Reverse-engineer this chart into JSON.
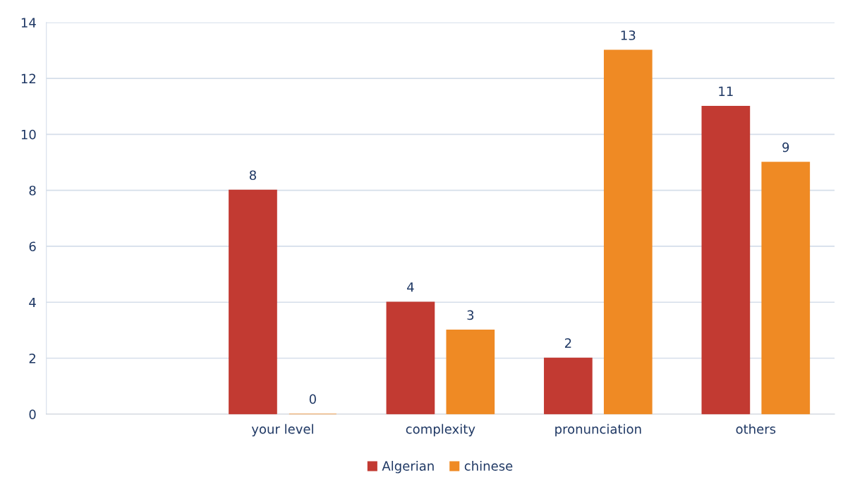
{
  "chart_data": {
    "type": "bar",
    "categories": [
      null,
      "your level",
      "complexity",
      "pronunciation",
      "others"
    ],
    "series": [
      {
        "name": "Algerian",
        "color": "#c23a32",
        "values": [
          null,
          8,
          4,
          2,
          11
        ]
      },
      {
        "name": "chinese",
        "color": "#ef8a24",
        "values": [
          null,
          0,
          3,
          13,
          9
        ]
      }
    ],
    "ylim": [
      0,
      14
    ],
    "yticks": [
      0,
      2,
      4,
      6,
      8,
      10,
      12,
      14
    ],
    "grid": "y",
    "legend": "bottom",
    "data_labels": true
  }
}
